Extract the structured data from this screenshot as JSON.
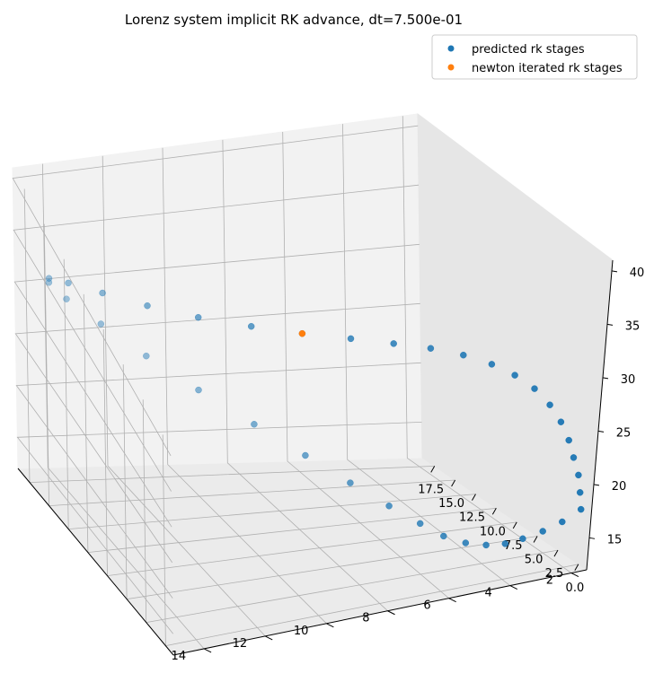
{
  "chart_data": {
    "type": "scatter",
    "title": "Lorenz system implicit RK advance, dt=7.500e-01",
    "projection": "3d",
    "legend": {
      "placement": "top-right",
      "entries": [
        "predicted rk stages",
        "newton iterated rk stages"
      ]
    },
    "axes": {
      "x": {
        "ticks": [
          0.0,
          2.5,
          5.0,
          7.5,
          10.0,
          12.5,
          15.0,
          17.5
        ],
        "tick_labels": [
          "0.0",
          "2.5",
          "5.0",
          "7.5",
          "10.0",
          "12.5",
          "15.0",
          "17.5"
        ],
        "range": [
          -1,
          19
        ]
      },
      "y": {
        "ticks": [
          2,
          4,
          6,
          8,
          10,
          12,
          14
        ],
        "tick_labels": [
          "2",
          "4",
          "6",
          "8",
          "10",
          "12",
          "14"
        ],
        "range": [
          1.5,
          15
        ]
      },
      "z": {
        "ticks": [
          15,
          20,
          25,
          30,
          35,
          40
        ],
        "tick_labels": [
          "15",
          "20",
          "25",
          "30",
          "35",
          "40"
        ],
        "range": [
          12,
          41
        ]
      }
    },
    "grid": true,
    "series": [
      {
        "name": "predicted rk stages",
        "color": "#1f77b4",
        "points": [
          {
            "x": 0.2,
            "y": 1.5,
            "z": 17
          },
          {
            "x": 0.5,
            "y": 2.0,
            "z": 16
          },
          {
            "x": 0.9,
            "y": 2.5,
            "z": 15.2
          },
          {
            "x": 1.4,
            "y": 3.0,
            "z": 14.5
          },
          {
            "x": 2.0,
            "y": 3.4,
            "z": 13.9
          },
          {
            "x": 2.8,
            "y": 3.8,
            "z": 13.5
          },
          {
            "x": 3.8,
            "y": 4.2,
            "z": 13.3
          },
          {
            "x": 5.0,
            "y": 4.6,
            "z": 13.4
          },
          {
            "x": 6.4,
            "y": 5.0,
            "z": 13.9
          },
          {
            "x": 8.0,
            "y": 5.6,
            "z": 14.8
          },
          {
            "x": 9.8,
            "y": 6.4,
            "z": 16.1
          },
          {
            "x": 11.6,
            "y": 7.4,
            "z": 17.8
          },
          {
            "x": 13.4,
            "y": 8.6,
            "z": 19.8
          },
          {
            "x": 15.0,
            "y": 10.0,
            "z": 22.2
          },
          {
            "x": 16.2,
            "y": 11.4,
            "z": 24.8
          },
          {
            "x": 16.9,
            "y": 12.7,
            "z": 27.6
          },
          {
            "x": 17.0,
            "y": 13.8,
            "z": 30.3
          },
          {
            "x": 16.5,
            "y": 14.5,
            "z": 32.8
          },
          {
            "x": 15.3,
            "y": 14.8,
            "z": 34.9
          },
          {
            "x": 13.6,
            "y": 14.6,
            "z": 36.6
          },
          {
            "x": 11.6,
            "y": 14.0,
            "z": 37.9
          },
          {
            "x": 9.5,
            "y": 13.1,
            "z": 38.7
          },
          {
            "x": 7.5,
            "y": 12.0,
            "z": 39.1
          },
          {
            "x": 5.7,
            "y": 10.8,
            "z": 39.2
          },
          {
            "x": 4.2,
            "y": 9.6,
            "z": 38.9
          },
          {
            "x": 3.0,
            "y": 8.4,
            "z": 38.3
          },
          {
            "x": 2.1,
            "y": 7.3,
            "z": 37.4
          },
          {
            "x": 1.5,
            "y": 6.3,
            "z": 36.3
          },
          {
            "x": 1.0,
            "y": 5.4,
            "z": 35.0
          },
          {
            "x": 0.6,
            "y": 4.6,
            "z": 33.5
          },
          {
            "x": 0.4,
            "y": 3.9,
            "z": 31.8
          },
          {
            "x": 0.2,
            "y": 3.3,
            "z": 30.0
          },
          {
            "x": 0.1,
            "y": 2.8,
            "z": 28.0
          },
          {
            "x": 0.1,
            "y": 2.4,
            "z": 26.0
          },
          {
            "x": 0.1,
            "y": 2.1,
            "z": 24.0
          },
          {
            "x": 0.1,
            "y": 1.9,
            "z": 22.2
          },
          {
            "x": 0.1,
            "y": 1.7,
            "z": 20.4
          },
          {
            "x": 0.1,
            "y": 1.6,
            "z": 18.7
          }
        ]
      },
      {
        "name": "newton iterated rk stages",
        "color": "#ff7f0e",
        "points": [
          {
            "x": 4.2,
            "y": 9.6,
            "z": 38.9
          }
        ]
      }
    ]
  }
}
